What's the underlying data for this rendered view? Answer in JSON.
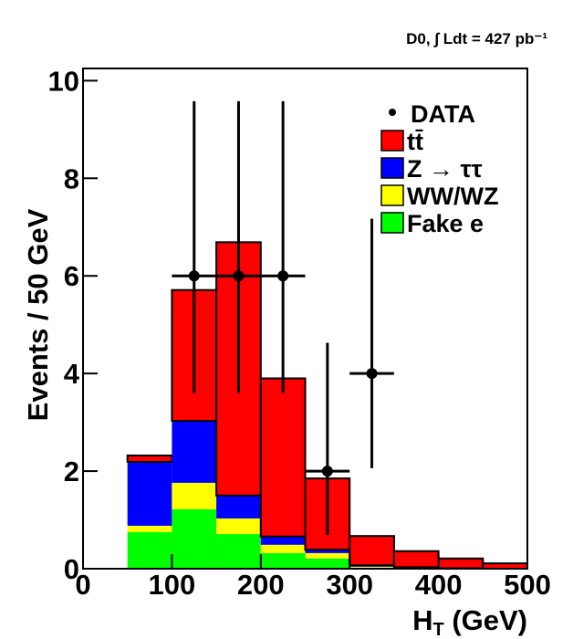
{
  "chart_data": {
    "type": "stacked_histogram",
    "title": "D0, ∫ Ldt = 427 pb⁻¹",
    "xlabel": "HT (GeV)",
    "ylabel": "Events / 50 GeV",
    "bins": [
      0,
      50,
      100,
      150,
      200,
      250,
      300,
      350,
      400,
      450,
      500
    ],
    "series": [
      {
        "name": "tt̄",
        "color": "#ff0000",
        "values": [
          0,
          0.13,
          2.68,
          5.19,
          3.24,
          1.46,
          0.6,
          0.33,
          0.2,
          0.11
        ]
      },
      {
        "name": "Z → ττ",
        "color": "#0000ff",
        "values": [
          0,
          1.31,
          1.27,
          0.47,
          0.17,
          0.07,
          0.03,
          0.01,
          0.01,
          0
        ]
      },
      {
        "name": "WW/WZ",
        "color": "#ffff00",
        "values": [
          0,
          0.13,
          0.54,
          0.32,
          0.17,
          0.11,
          0.02,
          0.01,
          0,
          0
        ]
      },
      {
        "name": "Fake e",
        "color": "#00ff00",
        "values": [
          0,
          0.75,
          1.22,
          0.71,
          0.32,
          0.21,
          0.02,
          0.01,
          0,
          0
        ]
      }
    ],
    "data": {
      "name": "DATA",
      "x": [
        125,
        175,
        225,
        275,
        325
      ],
      "values": [
        6,
        6,
        6,
        2,
        4
      ],
      "err_low": [
        2.4,
        2.4,
        2.4,
        1.31,
        1.94
      ],
      "err_high": [
        3.58,
        3.58,
        3.58,
        2.63,
        3.17
      ],
      "xerr": 25
    },
    "xlim": [
      0,
      500
    ],
    "xticks": [
      0,
      100,
      200,
      300,
      400,
      500
    ],
    "ylim": [
      0,
      10.25
    ],
    "yticks": [
      0,
      2,
      4,
      6,
      8,
      10
    ]
  }
}
